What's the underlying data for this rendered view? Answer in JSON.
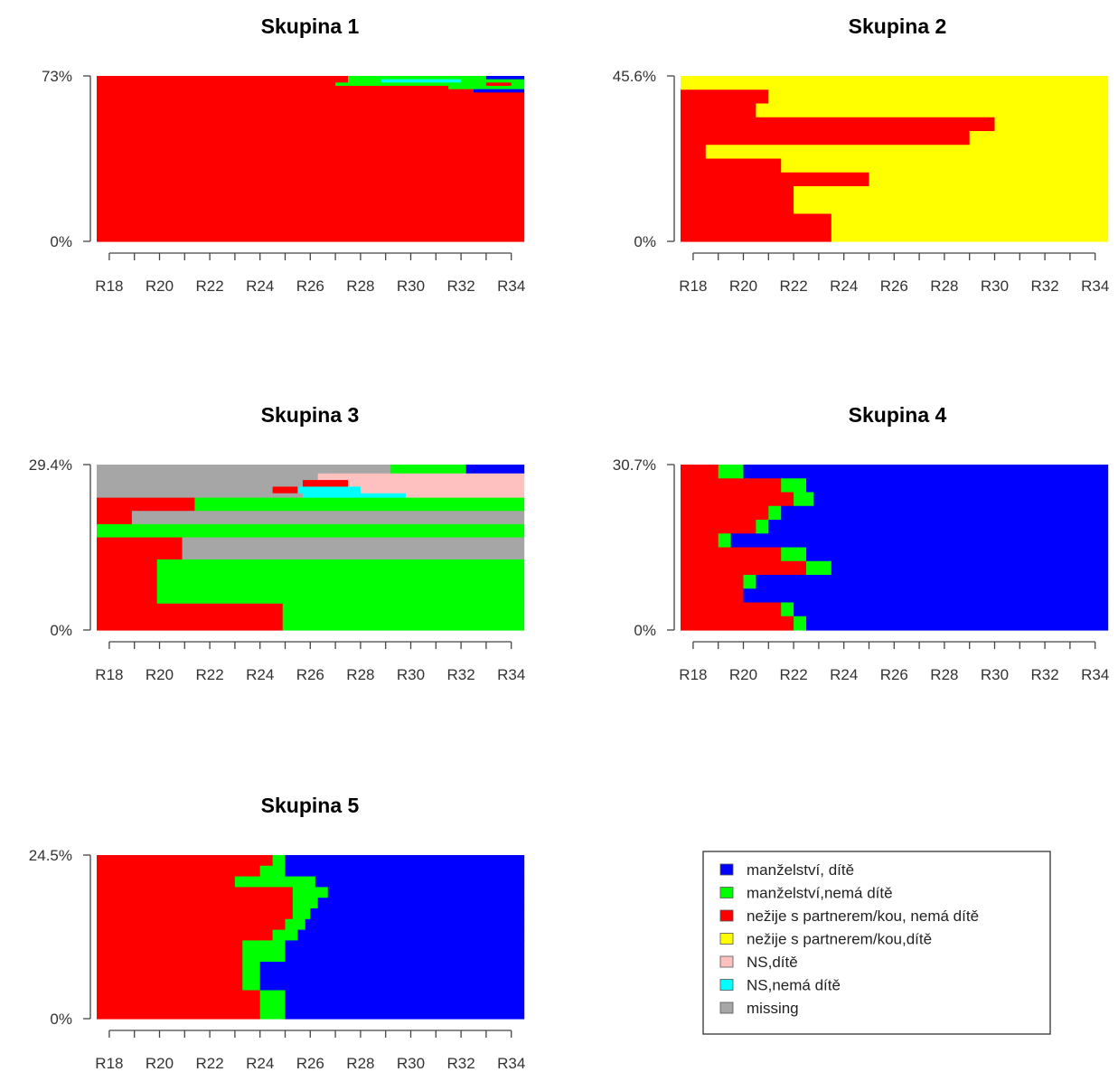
{
  "colors": {
    "manzelstvi_dite": "#0000ff",
    "manzelstvi_nema_dite": "#00ff00",
    "nezije_nema_dite": "#ff0000",
    "nezije_dite": "#ffff00",
    "ns_dite": "#ffc0c0",
    "ns_nema_dite": "#00ffff",
    "missing": "#a6a6a6"
  },
  "chart_data": [
    {
      "type": "area",
      "title": "Skupina 1",
      "y_top_label": "73%",
      "y_bottom_label": "0%",
      "x_tick_labels": [
        "R18",
        "R20",
        "R22",
        "R24",
        "R26",
        "R28",
        "R30",
        "R32",
        "R34"
      ],
      "ymax_percent": 73,
      "x_range": [
        "R18",
        "R35"
      ],
      "grid": false
    },
    {
      "type": "area",
      "title": "Skupina 2",
      "y_top_label": "45.6%",
      "y_bottom_label": "0%",
      "x_tick_labels": [
        "R18",
        "R20",
        "R22",
        "R24",
        "R26",
        "R28",
        "R30",
        "R32",
        "R34"
      ],
      "ymax_percent": 45.6,
      "x_range": [
        "R18",
        "R35"
      ],
      "grid": false
    },
    {
      "type": "area",
      "title": "Skupina 3",
      "y_top_label": "29.4%",
      "y_bottom_label": "0%",
      "x_tick_labels": [
        "R18",
        "R20",
        "R22",
        "R24",
        "R26",
        "R28",
        "R30",
        "R32",
        "R34"
      ],
      "ymax_percent": 29.4,
      "x_range": [
        "R18",
        "R35"
      ],
      "grid": false
    },
    {
      "type": "area",
      "title": "Skupina 4",
      "y_top_label": "30.7%",
      "y_bottom_label": "0%",
      "x_tick_labels": [
        "R18",
        "R20",
        "R22",
        "R24",
        "R26",
        "R28",
        "R30",
        "R32",
        "R34"
      ],
      "ymax_percent": 30.7,
      "x_range": [
        "R18",
        "R35"
      ],
      "grid": false
    },
    {
      "type": "area",
      "title": "Skupina 5",
      "y_top_label": "24.5%",
      "y_bottom_label": "0%",
      "x_tick_labels": [
        "R18",
        "R20",
        "R22",
        "R24",
        "R26",
        "R28",
        "R30",
        "R32",
        "R34"
      ],
      "ymax_percent": 24.5,
      "x_range": [
        "R18",
        "R35"
      ],
      "grid": false
    }
  ],
  "legend": {
    "items": [
      {
        "label": "manželství, dítě",
        "color": "#0000ff"
      },
      {
        "label": "manželství,nemá dítě",
        "color": "#00ff00"
      },
      {
        "label": "nežije s partnerem/kou, nemá dítě",
        "color": "#ff0000"
      },
      {
        "label": "nežije s partnerem/kou,dítě",
        "color": "#ffff00"
      },
      {
        "label": "NS,dítě",
        "color": "#ffc0c0"
      },
      {
        "label": "NS,nemá dítě",
        "color": "#00ffff"
      },
      {
        "label": "missing",
        "color": "#a6a6a6"
      }
    ]
  }
}
